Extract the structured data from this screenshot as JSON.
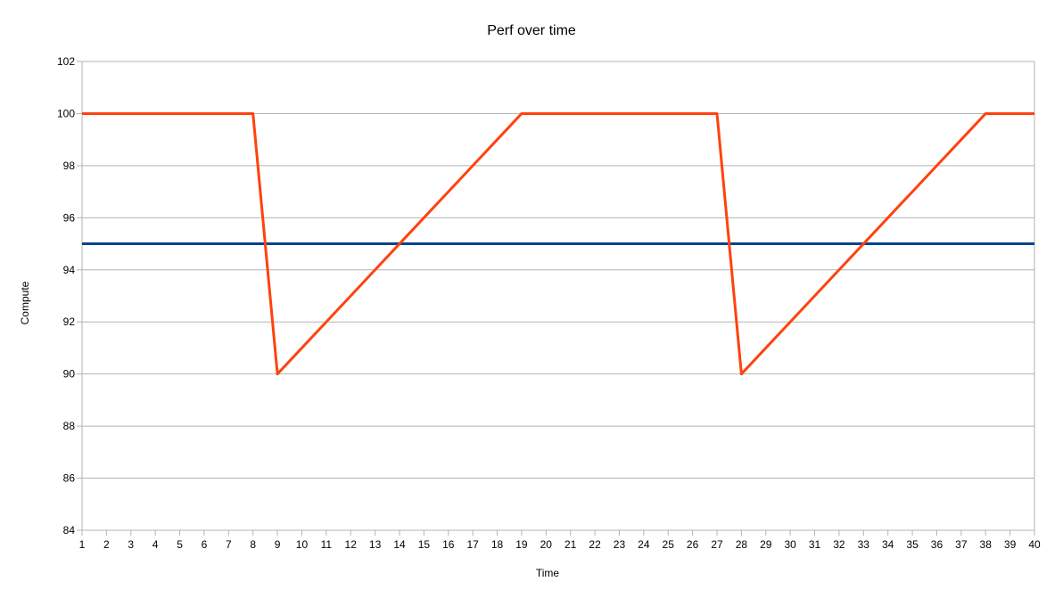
{
  "chart_data": {
    "type": "line",
    "title": "Perf over time",
    "xlabel": "Time",
    "ylabel": "Compute",
    "x": [
      1,
      2,
      3,
      4,
      5,
      6,
      7,
      8,
      9,
      10,
      11,
      12,
      13,
      14,
      15,
      16,
      17,
      18,
      19,
      20,
      21,
      22,
      23,
      24,
      25,
      26,
      27,
      28,
      29,
      30,
      31,
      32,
      33,
      34,
      35,
      36,
      37,
      38,
      39,
      40
    ],
    "xlim": [
      1,
      40
    ],
    "ylim": [
      84,
      102
    ],
    "yticks": [
      84,
      86,
      88,
      90,
      92,
      94,
      96,
      98,
      100,
      102
    ],
    "grid": "horizontal",
    "legend": "none",
    "series": [
      {
        "color": "#ff420e",
        "values": [
          100,
          100,
          100,
          100,
          100,
          100,
          100,
          100,
          90,
          91,
          92,
          93,
          94,
          95,
          96,
          97,
          98,
          99,
          100,
          100,
          100,
          100,
          100,
          100,
          100,
          100,
          100,
          90,
          91,
          92,
          93,
          94,
          95,
          96,
          97,
          98,
          99,
          100,
          100,
          100
        ]
      },
      {
        "color": "#004586",
        "values": [
          95,
          95,
          95,
          95,
          95,
          95,
          95,
          95,
          95,
          95,
          95,
          95,
          95,
          95,
          95,
          95,
          95,
          95,
          95,
          95,
          95,
          95,
          95,
          95,
          95,
          95,
          95,
          95,
          95,
          95,
          95,
          95,
          95,
          95,
          95,
          95,
          95,
          95,
          95,
          95
        ]
      }
    ]
  }
}
